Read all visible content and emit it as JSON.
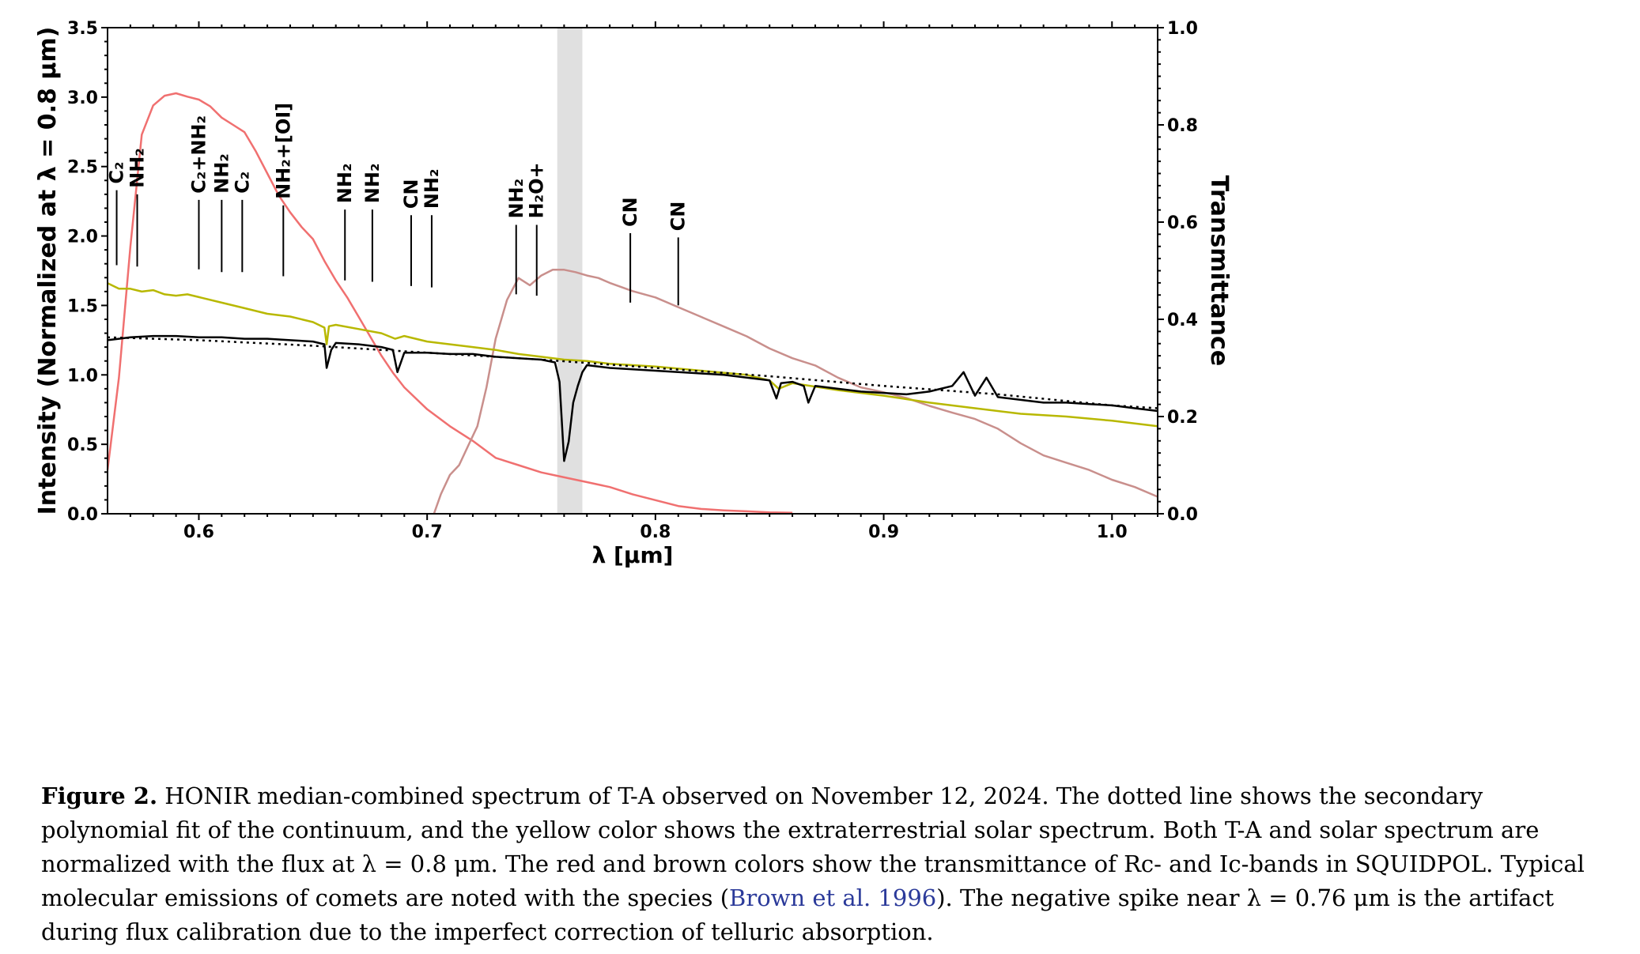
{
  "chart_data": {
    "type": "line",
    "xlabel": "λ [μm]",
    "ylabel_left": "Intensity (Normalized at λ = 0.8 μm)",
    "ylabel_right": "Transmittance",
    "xlim": [
      0.56,
      1.02
    ],
    "ylim_left": [
      0.0,
      3.5
    ],
    "ylim_right": [
      0.0,
      1.0
    ],
    "x_ticks": [
      0.6,
      0.7,
      0.8,
      0.9,
      1.0
    ],
    "x_tick_labels": [
      "0.6",
      "0.7",
      "0.8",
      "0.9",
      "1.0"
    ],
    "y_ticks_left": [
      0.0,
      0.5,
      1.0,
      1.5,
      2.0,
      2.5,
      3.0,
      3.5
    ],
    "y_tick_labels_left": [
      "0.0",
      "0.5",
      "1.0",
      "1.5",
      "2.0",
      "2.5",
      "3.0",
      "3.5"
    ],
    "y_ticks_right": [
      0.0,
      0.2,
      0.4,
      0.6,
      0.8,
      1.0
    ],
    "y_tick_labels_right": [
      "0.0",
      "0.2",
      "0.4",
      "0.6",
      "0.8",
      "1.0"
    ],
    "shaded_band": {
      "x_start": 0.757,
      "x_end": 0.768,
      "color": "#e0e0e0"
    },
    "series": [
      {
        "color": "#f07070",
        "axis": "right",
        "x": [
          0.56,
          0.565,
          0.57,
          0.575,
          0.58,
          0.585,
          0.59,
          0.595,
          0.6,
          0.605,
          0.61,
          0.615,
          0.62,
          0.625,
          0.63,
          0.635,
          0.64,
          0.645,
          0.65,
          0.655,
          0.66,
          0.665,
          0.67,
          0.675,
          0.68,
          0.685,
          0.69,
          0.7,
          0.71,
          0.72,
          0.73,
          0.74,
          0.75,
          0.76,
          0.77,
          0.78,
          0.79,
          0.8,
          0.81,
          0.82,
          0.83,
          0.84,
          0.85,
          0.86
        ],
        "y": [
          0.09,
          0.28,
          0.55,
          0.78,
          0.84,
          0.86,
          0.865,
          0.858,
          0.852,
          0.838,
          0.815,
          0.8,
          0.785,
          0.745,
          0.7,
          0.655,
          0.62,
          0.59,
          0.565,
          0.52,
          0.48,
          0.445,
          0.405,
          0.365,
          0.325,
          0.29,
          0.26,
          0.215,
          0.18,
          0.15,
          0.115,
          0.1,
          0.085,
          0.075,
          0.065,
          0.055,
          0.04,
          0.028,
          0.016,
          0.01,
          0.007,
          0.005,
          0.003,
          0.002
        ]
      },
      {
        "color": "#c98f8c",
        "axis": "right",
        "x": [
          0.703,
          0.706,
          0.71,
          0.714,
          0.718,
          0.722,
          0.726,
          0.73,
          0.735,
          0.74,
          0.745,
          0.75,
          0.755,
          0.76,
          0.765,
          0.77,
          0.775,
          0.78,
          0.79,
          0.8,
          0.81,
          0.82,
          0.83,
          0.84,
          0.85,
          0.86,
          0.87,
          0.88,
          0.89,
          0.9,
          0.91,
          0.92,
          0.93,
          0.94,
          0.95,
          0.96,
          0.97,
          0.98,
          0.99,
          1.0,
          1.01,
          1.02
        ],
        "y": [
          0.0,
          0.04,
          0.08,
          0.1,
          0.14,
          0.18,
          0.26,
          0.36,
          0.44,
          0.485,
          0.47,
          0.49,
          0.502,
          0.502,
          0.497,
          0.49,
          0.485,
          0.475,
          0.458,
          0.445,
          0.425,
          0.405,
          0.385,
          0.365,
          0.34,
          0.32,
          0.305,
          0.28,
          0.26,
          0.25,
          0.238,
          0.222,
          0.208,
          0.195,
          0.175,
          0.145,
          0.12,
          0.105,
          0.09,
          0.07,
          0.055,
          0.035
        ]
      },
      {
        "color": "#b8b800",
        "axis": "left",
        "x": [
          0.56,
          0.565,
          0.57,
          0.575,
          0.58,
          0.585,
          0.59,
          0.595,
          0.6,
          0.61,
          0.62,
          0.63,
          0.64,
          0.65,
          0.655,
          0.656,
          0.657,
          0.66,
          0.67,
          0.68,
          0.686,
          0.69,
          0.7,
          0.71,
          0.72,
          0.73,
          0.74,
          0.75,
          0.76,
          0.77,
          0.78,
          0.8,
          0.82,
          0.84,
          0.85,
          0.854,
          0.86,
          0.88,
          0.9,
          0.92,
          0.94,
          0.96,
          0.98,
          1.0,
          1.02
        ],
        "y": [
          1.66,
          1.62,
          1.62,
          1.6,
          1.61,
          1.58,
          1.57,
          1.58,
          1.56,
          1.52,
          1.48,
          1.44,
          1.42,
          1.38,
          1.34,
          1.22,
          1.35,
          1.36,
          1.33,
          1.3,
          1.26,
          1.28,
          1.24,
          1.22,
          1.2,
          1.18,
          1.15,
          1.13,
          1.11,
          1.1,
          1.08,
          1.06,
          1.03,
          1.0,
          0.96,
          0.9,
          0.94,
          0.89,
          0.85,
          0.8,
          0.76,
          0.72,
          0.7,
          0.67,
          0.63
        ]
      },
      {
        "color": "#000000",
        "axis": "left",
        "x": [
          0.56,
          0.565,
          0.57,
          0.58,
          0.59,
          0.6,
          0.61,
          0.62,
          0.63,
          0.64,
          0.65,
          0.655,
          0.656,
          0.658,
          0.66,
          0.67,
          0.68,
          0.685,
          0.687,
          0.69,
          0.7,
          0.71,
          0.72,
          0.73,
          0.74,
          0.75,
          0.756,
          0.758,
          0.76,
          0.762,
          0.764,
          0.766,
          0.768,
          0.77,
          0.78,
          0.79,
          0.8,
          0.81,
          0.82,
          0.83,
          0.84,
          0.85,
          0.853,
          0.855,
          0.86,
          0.865,
          0.867,
          0.87,
          0.88,
          0.89,
          0.9,
          0.91,
          0.92,
          0.93,
          0.935,
          0.94,
          0.945,
          0.95,
          0.96,
          0.97,
          0.98,
          0.99,
          1.0,
          1.01,
          1.02
        ],
        "y": [
          1.25,
          1.26,
          1.27,
          1.28,
          1.28,
          1.27,
          1.27,
          1.26,
          1.26,
          1.25,
          1.24,
          1.22,
          1.05,
          1.18,
          1.23,
          1.22,
          1.2,
          1.18,
          1.02,
          1.16,
          1.16,
          1.15,
          1.15,
          1.13,
          1.12,
          1.11,
          1.09,
          0.95,
          0.38,
          0.52,
          0.8,
          0.92,
          1.02,
          1.07,
          1.05,
          1.04,
          1.03,
          1.02,
          1.01,
          1.0,
          0.98,
          0.96,
          0.83,
          0.94,
          0.95,
          0.92,
          0.8,
          0.92,
          0.9,
          0.88,
          0.87,
          0.86,
          0.88,
          0.92,
          1.02,
          0.85,
          0.98,
          0.84,
          0.82,
          0.8,
          0.8,
          0.79,
          0.78,
          0.76,
          0.74
        ]
      },
      {
        "color": "#000000",
        "axis": "left",
        "style": "dotted",
        "x": [
          0.56,
          0.6,
          0.65,
          0.7,
          0.75,
          0.8,
          0.85,
          0.9,
          0.95,
          1.0,
          1.02
        ],
        "y": [
          1.27,
          1.25,
          1.21,
          1.16,
          1.11,
          1.05,
          0.99,
          0.92,
          0.86,
          0.78,
          0.76
        ]
      }
    ],
    "annotations": [
      {
        "x": 0.564,
        "label": "C₂",
        "y_top": 2.33,
        "y_bottom": 1.79
      },
      {
        "x": 0.573,
        "label": "NH₂",
        "y_top": 2.3,
        "y_bottom": 1.78
      },
      {
        "x": 0.6,
        "label": "C₂+NH₂",
        "y_top": 2.26,
        "y_bottom": 1.76
      },
      {
        "x": 0.61,
        "label": "NH₂",
        "y_top": 2.26,
        "y_bottom": 1.74
      },
      {
        "x": 0.619,
        "label": "C₂",
        "y_top": 2.26,
        "y_bottom": 1.74
      },
      {
        "x": 0.637,
        "label": "NH₂+[OI]",
        "y_top": 2.22,
        "y_bottom": 1.71
      },
      {
        "x": 0.664,
        "label": "NH₂",
        "y_top": 2.19,
        "y_bottom": 1.68
      },
      {
        "x": 0.676,
        "label": "NH₂",
        "y_top": 2.19,
        "y_bottom": 1.67
      },
      {
        "x": 0.693,
        "label": "CN",
        "y_top": 2.15,
        "y_bottom": 1.64
      },
      {
        "x": 0.702,
        "label": "NH₂",
        "y_top": 2.15,
        "y_bottom": 1.63
      },
      {
        "x": 0.739,
        "label": "NH₂",
        "y_top": 2.08,
        "y_bottom": 1.58
      },
      {
        "x": 0.748,
        "label": "H₂O+",
        "y_top": 2.08,
        "y_bottom": 1.57
      },
      {
        "x": 0.789,
        "label": "CN",
        "y_top": 2.02,
        "y_bottom": 1.52
      },
      {
        "x": 0.81,
        "label": "CN",
        "y_top": 1.99,
        "y_bottom": 1.5
      }
    ]
  },
  "caption": {
    "label": "Figure 2.",
    "text_before_cite": " HONIR median-combined spectrum of T-A observed on November 12, 2024. The dotted line shows the secondary polynomial fit of the continuum, and the yellow color shows the extraterrestrial solar spectrum. Both T-A and solar spectrum are normalized with the flux at λ = 0.8 μm. The red and brown colors show the transmittance of Rc- and Ic-bands in SQUIDPOL. Typical molecular emissions of comets are noted with the species (",
    "cite": "Brown et al. 1996",
    "text_after_cite": "). The negative spike near λ = 0.76 μm is the artifact during flux calibration due to the imperfect correction of telluric absorption."
  }
}
